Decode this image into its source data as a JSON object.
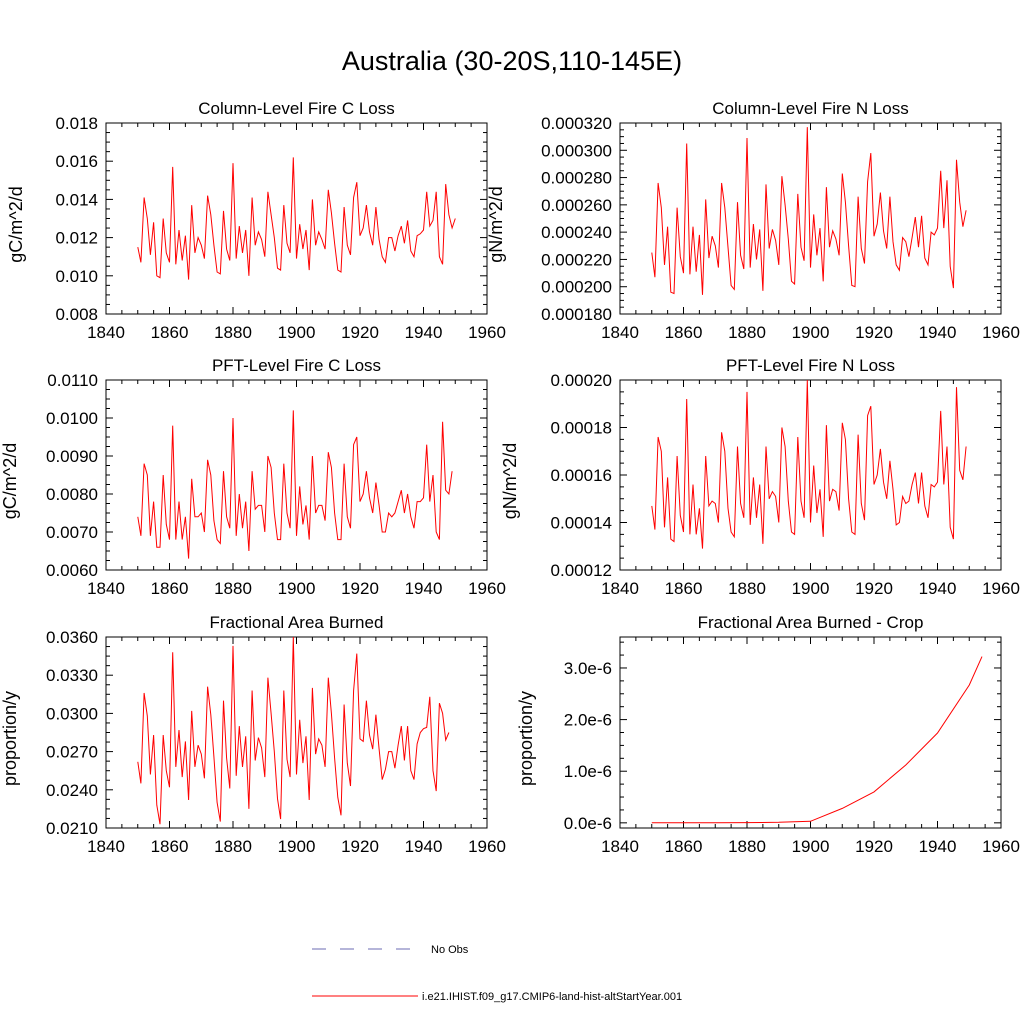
{
  "page": {
    "title": "Australia (30-20S,110-145E)"
  },
  "legend": [
    {
      "label": "No Obs",
      "color": "#6b6bb3",
      "dash": "dashed"
    },
    {
      "label": "i.e21.IHIST.f09_g17.CMIP6-land-hist-altStartYear.001",
      "color": "#ff0000",
      "dash": "solid"
    }
  ],
  "chart_data": [
    {
      "type": "line",
      "title": "Column-Level Fire C Loss",
      "ylabel": "gC/m^2/d",
      "xlim": [
        1840,
        1960
      ],
      "ylim": [
        0.008,
        0.018
      ],
      "xticks": [
        1840,
        1860,
        1880,
        1900,
        1920,
        1940,
        1960
      ],
      "xtick_labels": [
        "1840",
        "1860",
        "1880",
        "1900",
        "1920",
        "1940",
        "1960"
      ],
      "yticks": [
        0.008,
        0.01,
        0.012,
        0.014,
        0.016,
        0.018
      ],
      "ytick_labels": [
        "0.008",
        "0.010",
        "0.012",
        "0.014",
        "0.016",
        "0.018"
      ],
      "color": "#ff0000",
      "x_start": 1850,
      "y": [
        0.0115,
        0.0107,
        0.0141,
        0.013,
        0.0111,
        0.0128,
        0.01,
        0.0099,
        0.013,
        0.0112,
        0.0107,
        0.0157,
        0.0106,
        0.0124,
        0.0108,
        0.0121,
        0.0098,
        0.0137,
        0.0112,
        0.012,
        0.0116,
        0.0109,
        0.0142,
        0.0132,
        0.0116,
        0.0102,
        0.0101,
        0.0134,
        0.0114,
        0.0108,
        0.0159,
        0.0109,
        0.0126,
        0.0112,
        0.0124,
        0.01,
        0.0141,
        0.0116,
        0.0123,
        0.0119,
        0.011,
        0.0144,
        0.0132,
        0.012,
        0.0104,
        0.0103,
        0.0137,
        0.0117,
        0.0112,
        0.0162,
        0.0109,
        0.0127,
        0.0114,
        0.0124,
        0.0103,
        0.014,
        0.0116,
        0.0123,
        0.0119,
        0.0114,
        0.0145,
        0.0133,
        0.0117,
        0.0103,
        0.0102,
        0.0136,
        0.0116,
        0.0111,
        0.0141,
        0.0149,
        0.0121,
        0.0125,
        0.0137,
        0.0123,
        0.0116,
        0.0136,
        0.0119,
        0.011,
        0.0107,
        0.012,
        0.012,
        0.0113,
        0.0121,
        0.0126,
        0.0117,
        0.0129,
        0.0113,
        0.011,
        0.0121,
        0.0122,
        0.0124,
        0.0144,
        0.0126,
        0.0129,
        0.0144,
        0.011,
        0.0106,
        0.0148,
        0.0132,
        0.0125,
        0.013
      ]
    },
    {
      "type": "line",
      "title": "Column-Level Fire N Loss",
      "ylabel": "gN/m^2/d",
      "xlim": [
        1840,
        1960
      ],
      "ylim": [
        0.00018,
        0.00032
      ],
      "xticks": [
        1840,
        1860,
        1880,
        1900,
        1920,
        1940,
        1960
      ],
      "xtick_labels": [
        "1840",
        "1860",
        "1880",
        "1900",
        "1920",
        "1940",
        "1960"
      ],
      "yticks": [
        0.00018,
        0.0002,
        0.00022,
        0.00024,
        0.00026,
        0.00028,
        0.0003,
        0.00032
      ],
      "ytick_labels": [
        "0.000180",
        "0.000200",
        "0.000220",
        "0.000240",
        "0.000260",
        "0.000280",
        "0.000300",
        "0.000320"
      ],
      "color": "#ff0000",
      "x_start": 1850,
      "y": [
        0.000225,
        0.000207,
        0.000276,
        0.000258,
        0.000216,
        0.000244,
        0.000196,
        0.000195,
        0.000258,
        0.000222,
        0.00021,
        0.000305,
        0.000209,
        0.000244,
        0.000211,
        0.000238,
        0.000194,
        0.000264,
        0.000221,
        0.000237,
        0.00023,
        0.000214,
        0.000276,
        0.000258,
        0.000229,
        0.000201,
        0.000198,
        0.000262,
        0.000223,
        0.000213,
        0.000309,
        0.000214,
        0.000246,
        0.00022,
        0.000242,
        0.000197,
        0.000275,
        0.000228,
        0.000242,
        0.000234,
        0.000216,
        0.000281,
        0.00026,
        0.000235,
        0.000204,
        0.000202,
        0.000268,
        0.000229,
        0.000219,
        0.000317,
        0.000214,
        0.000253,
        0.000223,
        0.000243,
        0.000204,
        0.000273,
        0.000229,
        0.000241,
        0.000235,
        0.000223,
        0.000283,
        0.000262,
        0.00023,
        0.000201,
        0.0002,
        0.000266,
        0.000228,
        0.000217,
        0.000277,
        0.000298,
        0.000237,
        0.000246,
        0.000269,
        0.000241,
        0.000228,
        0.000266,
        0.000233,
        0.000216,
        0.000212,
        0.000236,
        0.000233,
        0.000222,
        0.000236,
        0.000251,
        0.000229,
        0.000252,
        0.000221,
        0.000216,
        0.00024,
        0.000238,
        0.000243,
        0.000285,
        0.000243,
        0.000278,
        0.000215,
        0.000199,
        0.000293,
        0.000262,
        0.000244,
        0.000256
      ]
    },
    {
      "type": "line",
      "title": "PFT-Level Fire C Loss",
      "ylabel": "gC/m^2/d",
      "xlim": [
        1840,
        1960
      ],
      "ylim": [
        0.006,
        0.011
      ],
      "xticks": [
        1840,
        1860,
        1880,
        1900,
        1920,
        1940,
        1960
      ],
      "xtick_labels": [
        "1840",
        "1860",
        "1880",
        "1900",
        "1920",
        "1940",
        "1960"
      ],
      "yticks": [
        0.006,
        0.007,
        0.008,
        0.009,
        0.01,
        0.011
      ],
      "ytick_labels": [
        "0.0060",
        "0.0070",
        "0.0080",
        "0.0090",
        "0.0100",
        "0.0110"
      ],
      "color": "#ff0000",
      "x_start": 1850,
      "y": [
        0.0074,
        0.0069,
        0.0088,
        0.0085,
        0.0069,
        0.0078,
        0.0066,
        0.0066,
        0.0085,
        0.0072,
        0.0068,
        0.0098,
        0.0068,
        0.0078,
        0.0068,
        0.0074,
        0.0063,
        0.0084,
        0.0074,
        0.0074,
        0.0075,
        0.007,
        0.0089,
        0.0085,
        0.0073,
        0.0068,
        0.0067,
        0.0086,
        0.0074,
        0.0071,
        0.01,
        0.0069,
        0.008,
        0.0071,
        0.0078,
        0.0065,
        0.0086,
        0.0076,
        0.0077,
        0.0077,
        0.007,
        0.009,
        0.0087,
        0.0075,
        0.0068,
        0.0068,
        0.0088,
        0.0075,
        0.0071,
        0.0102,
        0.0069,
        0.0082,
        0.0072,
        0.0077,
        0.0068,
        0.009,
        0.0075,
        0.0077,
        0.0077,
        0.0073,
        0.0091,
        0.0087,
        0.0075,
        0.0068,
        0.0068,
        0.0088,
        0.0074,
        0.0071,
        0.0093,
        0.0095,
        0.0078,
        0.008,
        0.0086,
        0.0079,
        0.0075,
        0.0083,
        0.0077,
        0.007,
        0.007,
        0.0075,
        0.0074,
        0.0075,
        0.0078,
        0.0081,
        0.0075,
        0.008,
        0.0074,
        0.0071,
        0.0078,
        0.0078,
        0.0079,
        0.0093,
        0.0078,
        0.0085,
        0.007,
        0.0068,
        0.0099,
        0.0081,
        0.008,
        0.0086
      ]
    },
    {
      "type": "line",
      "title": "PFT-Level Fire N Loss",
      "ylabel": "gN/m^2/d",
      "xlim": [
        1840,
        1960
      ],
      "ylim": [
        0.00012,
        0.0002
      ],
      "xticks": [
        1840,
        1860,
        1880,
        1900,
        1920,
        1940,
        1960
      ],
      "xtick_labels": [
        "1840",
        "1860",
        "1880",
        "1900",
        "1920",
        "1940",
        "1960"
      ],
      "yticks": [
        0.00012,
        0.00014,
        0.00016,
        0.00018,
        0.0002
      ],
      "ytick_labels": [
        "0.00012",
        "0.00014",
        "0.00016",
        "0.00018",
        "0.00020"
      ],
      "color": "#ff0000",
      "x_start": 1850,
      "y": [
        0.000147,
        0.000137,
        0.000176,
        0.00017,
        0.000138,
        0.000159,
        0.000133,
        0.000132,
        0.000168,
        0.000143,
        0.000136,
        0.000192,
        0.000135,
        0.000156,
        0.000135,
        0.000146,
        0.000129,
        0.000168,
        0.000147,
        0.000149,
        0.000148,
        0.00014,
        0.000178,
        0.00017,
        0.000146,
        0.000136,
        0.000134,
        0.000172,
        0.000148,
        0.000142,
        0.000195,
        0.000139,
        0.000159,
        0.000142,
        0.000156,
        0.000131,
        0.000172,
        0.00015,
        0.000153,
        0.000151,
        0.00014,
        0.00018,
        0.000172,
        0.000149,
        0.000136,
        0.000135,
        0.000176,
        0.000149,
        0.000142,
        0.0002,
        0.00014,
        0.000164,
        0.000144,
        0.000154,
        0.000134,
        0.000181,
        0.000149,
        0.000154,
        0.000153,
        0.000145,
        0.000182,
        0.000175,
        0.00015,
        0.000136,
        0.000135,
        0.000177,
        0.000148,
        0.000141,
        0.000185,
        0.000189,
        0.000156,
        0.00016,
        0.000171,
        0.000157,
        0.00015,
        0.000166,
        0.000154,
        0.000139,
        0.00014,
        0.000151,
        0.000148,
        0.000149,
        0.000156,
        0.000161,
        0.000148,
        0.000161,
        0.000147,
        0.000142,
        0.000156,
        0.000155,
        0.000157,
        0.000187,
        0.000156,
        0.000172,
        0.000138,
        0.000133,
        0.000197,
        0.000162,
        0.000158,
        0.000172
      ]
    },
    {
      "type": "line",
      "title": "Fractional Area Burned",
      "ylabel": "proportion/y",
      "xlim": [
        1840,
        1960
      ],
      "ylim": [
        0.021,
        0.036
      ],
      "xticks": [
        1840,
        1860,
        1880,
        1900,
        1920,
        1940,
        1960
      ],
      "xtick_labels": [
        "1840",
        "1860",
        "1880",
        "1900",
        "1920",
        "1940",
        "1960"
      ],
      "yticks": [
        0.021,
        0.024,
        0.027,
        0.03,
        0.033,
        0.036
      ],
      "ytick_labels": [
        "0.0210",
        "0.0240",
        "0.0270",
        "0.0300",
        "0.0330",
        "0.0360"
      ],
      "color": "#ff0000",
      "x_start": 1850,
      "y": [
        0.0262,
        0.0245,
        0.0316,
        0.0298,
        0.0252,
        0.0283,
        0.0228,
        0.0213,
        0.0283,
        0.0255,
        0.0242,
        0.0348,
        0.0258,
        0.0287,
        0.025,
        0.0278,
        0.0232,
        0.0302,
        0.0258,
        0.0275,
        0.0268,
        0.0249,
        0.0321,
        0.0299,
        0.0266,
        0.023,
        0.0215,
        0.031,
        0.0265,
        0.0241,
        0.0353,
        0.0251,
        0.029,
        0.0258,
        0.0282,
        0.0225,
        0.0318,
        0.0263,
        0.0281,
        0.0273,
        0.025,
        0.0328,
        0.03,
        0.027,
        0.0233,
        0.0217,
        0.0318,
        0.0264,
        0.025,
        0.036,
        0.0252,
        0.0295,
        0.0261,
        0.0282,
        0.0232,
        0.032,
        0.0268,
        0.028,
        0.0275,
        0.0258,
        0.0328,
        0.03,
        0.0265,
        0.0234,
        0.022,
        0.0307,
        0.0261,
        0.0243,
        0.0318,
        0.0347,
        0.028,
        0.0278,
        0.031,
        0.0283,
        0.0272,
        0.0299,
        0.0272,
        0.0248,
        0.0256,
        0.027,
        0.027,
        0.0257,
        0.0275,
        0.029,
        0.0263,
        0.029,
        0.0255,
        0.0248,
        0.0276,
        0.0285,
        0.0288,
        0.0289,
        0.0313,
        0.0255,
        0.0239,
        0.0308,
        0.03,
        0.0279,
        0.0285
      ]
    },
    {
      "type": "line",
      "title": "Fractional Area Burned - Crop",
      "ylabel": "proportion/y",
      "xlim": [
        1840,
        1960
      ],
      "ylim": [
        -1e-07,
        3.6e-06
      ],
      "xticks": [
        1840,
        1860,
        1880,
        1900,
        1920,
        1940,
        1960
      ],
      "xtick_labels": [
        "1840",
        "1860",
        "1880",
        "1900",
        "1920",
        "1940",
        "1960"
      ],
      "yticks": [
        0,
        1e-06,
        2e-06,
        3e-06
      ],
      "ytick_labels": [
        "0.0e-6",
        "1.0e-6",
        "2.0e-6",
        "3.0e-6"
      ],
      "color": "#ff0000",
      "x": [
        1850,
        1860,
        1870,
        1880,
        1890,
        1900,
        1910,
        1920,
        1930,
        1940,
        1950,
        1954
      ],
      "y": [
        0.0,
        0.0,
        0.0,
        5e-09,
        1e-08,
        3e-08,
        2.8e-07,
        6e-07,
        1.12e-06,
        1.74e-06,
        2.67e-06,
        3.22e-06
      ]
    }
  ]
}
